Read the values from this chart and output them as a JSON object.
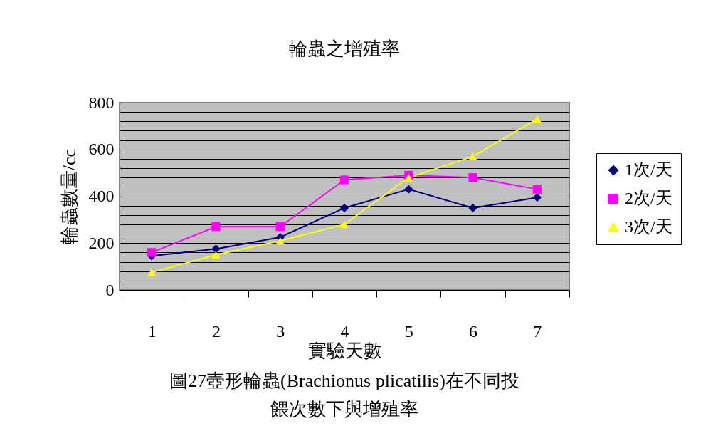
{
  "chart_data": {
    "type": "line",
    "title": "輪蟲之增殖率",
    "xlabel": "實驗天數",
    "ylabel": "輪蟲數量/cc",
    "annotations": [
      "圖27壺形輪蟲(Brachionus plicatilis)在不同投餵次數下與增殖率"
    ],
    "categories": [
      "1",
      "2",
      "3",
      "4",
      "5",
      "6",
      "7"
    ],
    "series": [
      {
        "name": "1次/天",
        "color": "#000080",
        "marker": "diamond",
        "values": [
          145,
          175,
          225,
          350,
          430,
          350,
          395
        ]
      },
      {
        "name": "2次/天",
        "color": "#ff00ff",
        "marker": "square",
        "values": [
          160,
          270,
          270,
          470,
          490,
          480,
          430
        ]
      },
      {
        "name": "3次/天",
        "color": "#ffff00",
        "marker": "triangle",
        "values": [
          75,
          150,
          210,
          280,
          480,
          570,
          730
        ]
      }
    ],
    "ylim": [
      0,
      800
    ],
    "yticks": [
      0,
      {
        "value": 40,
        "label": null
      },
      {
        "value": 80,
        "label": null
      },
      {
        "value": 120,
        "label": null
      },
      {
        "value": 160,
        "label": null
      },
      200,
      {
        "value": 240,
        "label": null
      },
      {
        "value": 280,
        "label": null
      },
      {
        "value": 320,
        "label": null
      },
      {
        "value": 360,
        "label": null
      },
      400,
      {
        "value": 440,
        "label": null
      },
      {
        "value": 480,
        "label": null
      },
      {
        "value": 520,
        "label": null
      },
      {
        "value": 560,
        "label": null
      },
      600,
      {
        "value": 640,
        "label": null
      },
      {
        "value": 680,
        "label": null
      },
      {
        "value": 720,
        "label": null
      },
      {
        "value": 760,
        "label": null
      },
      800
    ],
    "grid": "y",
    "legend": "right",
    "line_style": "solid"
  }
}
